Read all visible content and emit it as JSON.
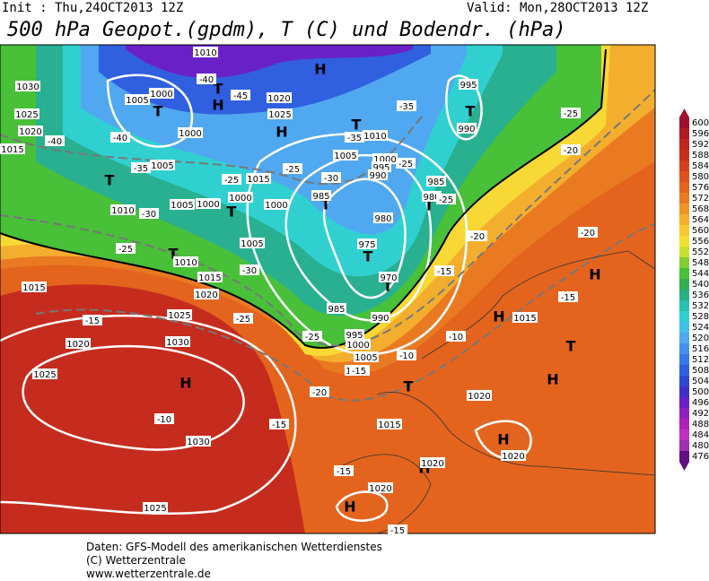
{
  "header": {
    "init": "Init : Thu,24OCT2013 12Z",
    "valid": "Valid: Mon,28OCT2013 12Z",
    "title": "500 hPa Geopot.(gpdm), T (C) und Bodendr. (hPa)"
  },
  "footer": [
    "Daten: GFS-Modell des amerikanischen Wetterdienstes",
    "(C) Wetterzentrale",
    "www.wetterzentrale.de"
  ],
  "colorbar": {
    "values": [
      600,
      596,
      592,
      588,
      584,
      580,
      576,
      572,
      568,
      564,
      560,
      556,
      552,
      548,
      544,
      540,
      536,
      532,
      528,
      524,
      520,
      516,
      512,
      508,
      504,
      500,
      496,
      492,
      488,
      484,
      480,
      476
    ],
    "colors": [
      "#a0102a",
      "#b01c24",
      "#be2420",
      "#c8301e",
      "#d4401c",
      "#dc521c",
      "#e4641e",
      "#ea7a22",
      "#f09428",
      "#f4ae2e",
      "#f8c832",
      "#f4e034",
      "#c8e030",
      "#80d030",
      "#48c038",
      "#30b050",
      "#28b080",
      "#28c0b0",
      "#30d0d0",
      "#40c0e8",
      "#50a8f0",
      "#4890f0",
      "#3878e8",
      "#3060e0",
      "#3048d0",
      "#4030c8",
      "#6a20c8",
      "#9020c0",
      "#b020b8",
      "#c030c0",
      "#a030b0",
      "#601080"
    ]
  },
  "map": {
    "labels": [
      "H",
      "H",
      "T",
      "T",
      "H",
      "T",
      "T",
      "T",
      "T",
      "T",
      "T",
      "T",
      "T",
      "T",
      "H",
      "H",
      "T",
      "H",
      "T",
      "H",
      "H",
      "H",
      "H",
      "1010",
      "1030",
      "1025",
      "1020",
      "1015",
      "1005",
      "1000",
      "1000",
      "1020",
      "1025",
      "1005",
      "1015",
      "1000",
      "1000",
      "1005",
      "1000",
      "1010",
      "1005",
      "1010",
      "1015",
      "1020",
      "1015",
      "1025",
      "1030",
      "1020",
      "1025",
      "1030",
      "1025",
      "1005",
      "1000",
      "995",
      "990",
      "985",
      "980",
      "975",
      "970",
      "985",
      "980",
      "995",
      "990",
      "1010",
      "985",
      "990",
      "995",
      "1000",
      "1005",
      "1010",
      "1015",
      "1015",
      "1020",
      "1020",
      "1020",
      "1020",
      "-40",
      "-45",
      "-40",
      "-40",
      "-35",
      "-35",
      "-25",
      "-25",
      "-30",
      "-30",
      "-25",
      "-30",
      "-25",
      "-25",
      "-20",
      "-15",
      "-10",
      "-10",
      "-15",
      "-20",
      "-25",
      "-25",
      "-35",
      "-25",
      "-20",
      "-20",
      "-15",
      "-15",
      "-10",
      "-15",
      "-15",
      "-15"
    ]
  }
}
